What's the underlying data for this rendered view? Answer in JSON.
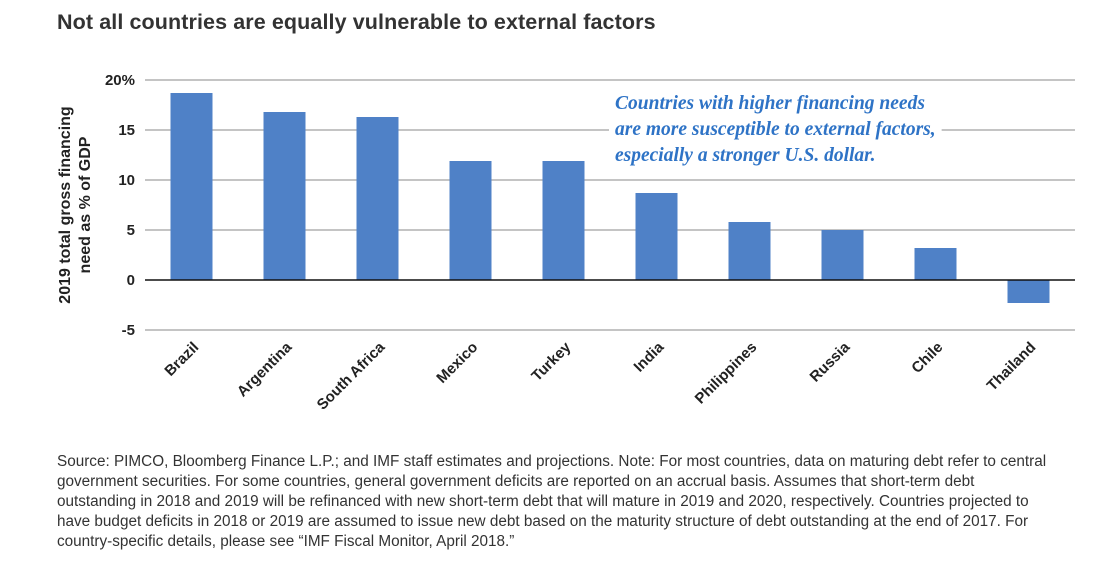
{
  "title": "Not all countries are equally vulnerable to external factors",
  "source_note": "Source: PIMCO, Bloomberg Finance L.P.; and IMF staff estimates and projections. Note: For most countries, data on maturing debt refer to central government securities. For some countries, general government deficits are reported on an accrual basis. Assumes that short-term debt outstanding in 2018 and 2019 will be refinanced with new short-term debt that will mature in 2019 and 2020, respectively. Countries projected to have budget deficits in 2018 or 2019 are assumed to issue new debt based on the maturity structure of debt outstanding at the end of 2017. For country-specific details, please see “IMF Fiscal Monitor, April 2018.”",
  "chart_data": {
    "type": "bar",
    "categories": [
      "Brazil",
      "Argentina",
      "South Africa",
      "Mexico",
      "Turkey",
      "India",
      "Philippines",
      "Russia",
      "Chile",
      "Thailand"
    ],
    "values": [
      18.7,
      16.8,
      16.3,
      11.9,
      11.9,
      8.7,
      5.8,
      5.0,
      3.2,
      -2.3
    ],
    "ylabel_lines": [
      "2019 total gross financing",
      "need as % of GDP"
    ],
    "ylim": [
      -5,
      20
    ],
    "yticks": [
      20,
      15,
      10,
      5,
      0,
      -5
    ],
    "ytick_labels": [
      "20%",
      "15",
      "10",
      "5",
      "0",
      "-5"
    ],
    "grid": true,
    "bar_color": "#4f81c7",
    "annotation_color": "#2e73c6",
    "annotation_lines": [
      "Countries with higher financing needs",
      "are more susceptible to external factors,",
      "especially a stronger U.S. dollar."
    ]
  }
}
